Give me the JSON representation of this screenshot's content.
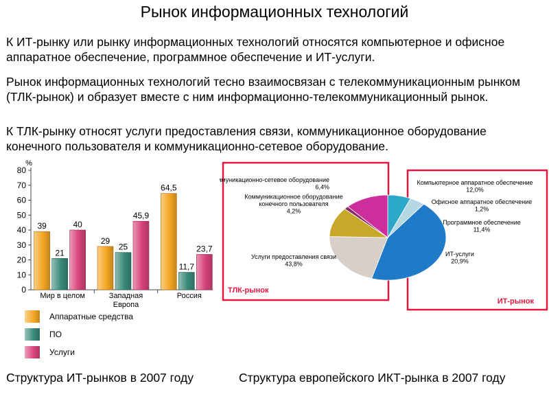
{
  "page": {
    "title": "Рынок информационных технологий",
    "paragraphs": [
      "К ИТ-рынку или рынку информационных технологий относятся компьютерное и офисное аппаратное обеспечение, программное обеспечение и ИТ-услуги.",
      "Рынок информационных технологий тесно взаимосвязан с телекоммуникационным рынком (ТЛК-рынок) и образует вместе с ним информационно-телекоммуникационный рынок.",
      "К ТЛК-рынку относят услуги предоставления связи, коммуникационное оборудование конечного пользователя и коммуникационно-сетевое оборудование."
    ],
    "captions": {
      "left": "Структура ИТ-рынков в 2007 году",
      "right": "Структура европейского ИКТ-рынка в 2007 году"
    }
  },
  "chart_data": [
    {
      "type": "bar",
      "ylabel": "%",
      "ylim": [
        0,
        80
      ],
      "yticks": [
        0,
        10,
        20,
        30,
        40,
        50,
        60,
        70,
        80
      ],
      "grid": false,
      "legend_position": "bottom",
      "categories": [
        "Мир в целом",
        "Западная Европа",
        "Россия"
      ],
      "series": [
        {
          "name": "Аппаратные средства",
          "values": [
            39,
            29,
            64.5
          ],
          "labels": [
            "39",
            "29",
            "64,5"
          ],
          "color": "#f5a623"
        },
        {
          "name": "ПО",
          "values": [
            21,
            25,
            11.7
          ],
          "labels": [
            "21",
            "25",
            "11,7"
          ],
          "color": "#3a8a7a"
        },
        {
          "name": "Услуги",
          "values": [
            40,
            45.9,
            23.7
          ],
          "labels": [
            "40",
            "45,9",
            "23,7"
          ],
          "color": "#d8437a"
        }
      ]
    },
    {
      "type": "pie",
      "groups": [
        {
          "label": "ТЛК-рынок",
          "color": "#e3163d"
        },
        {
          "label": "ИТ-рынок",
          "color": "#e3163d"
        }
      ],
      "slices": [
        {
          "name": "Коммуникационно-сетевое оборудование",
          "value": 6.4,
          "value_label": "6,4%",
          "group": "ТЛК-рынок",
          "color": "#2aa7c9"
        },
        {
          "name": "Коммуникационное оборудование конечного пользователя",
          "value": 4.2,
          "value_label": "4,2%",
          "group": "ТЛК-рынок",
          "color": "#b6d8e2"
        },
        {
          "name": "Услуги предоставления связи",
          "value": 43.8,
          "value_label": "43,8%",
          "group": "ТЛК-рынок",
          "color": "#1f7bc8"
        },
        {
          "name": "ИТ-услуги",
          "value": 20.9,
          "value_label": "20,9%",
          "group": "ИТ-рынок",
          "color": "#d8d0c8"
        },
        {
          "name": "Программное обеспечение",
          "value": 11.4,
          "value_label": "11,4%",
          "group": "ИТ-рынок",
          "color": "#c8a82a"
        },
        {
          "name": "Офисное аппаратное обеспечение",
          "value": 1.2,
          "value_label": "1,2%",
          "group": "ИТ-рынок",
          "color": "#8a2a6a"
        },
        {
          "name": "Компьютерное аппаратное обеспечение",
          "value": 12.0,
          "value_label": "12,0%",
          "group": "ИТ-рынок",
          "color": "#cc2f9c"
        }
      ]
    }
  ]
}
